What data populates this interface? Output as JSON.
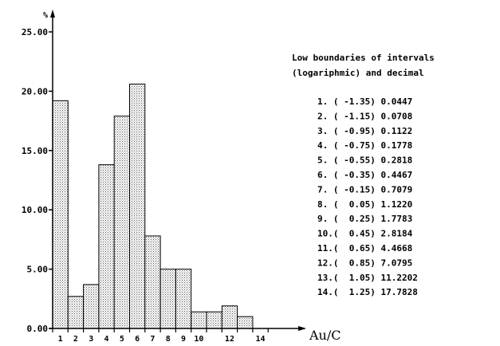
{
  "chart_data": {
    "type": "bar",
    "y_unit": "%",
    "xlabel": "Au/C",
    "ylabel": "",
    "ylim": [
      0,
      25
    ],
    "yticks": [
      "0.00",
      "5.00",
      "10.00",
      "15.00",
      "20.00",
      "25.00"
    ],
    "x_tick_labels": [
      "1",
      "2",
      "3",
      "4",
      "5",
      "6",
      "7",
      "8",
      "9",
      "10",
      "12",
      "14"
    ],
    "categories": [
      "1",
      "2",
      "3",
      "4",
      "5",
      "6",
      "7",
      "8",
      "9",
      "10",
      "11",
      "12",
      "13",
      "14"
    ],
    "values": [
      19.2,
      2.7,
      3.7,
      13.8,
      17.9,
      20.6,
      7.8,
      5.0,
      5.0,
      1.4,
      1.4,
      1.9,
      1.0,
      0.0
    ],
    "bar_fill": "dotted-gray",
    "grid": false,
    "legend": {
      "title_lines": [
        "Low boundaries of intervals",
        "(logariphmic) and decimal"
      ],
      "rows": [
        "1. ( -1.35) 0.0447",
        "2. ( -1.15) 0.0708",
        "3. ( -0.95) 0.1122",
        "4. ( -0.75) 0.1778",
        "5. ( -0.55) 0.2818",
        "6. ( -0.35) 0.4467",
        "7. ( -0.15) 0.7079",
        "8. (  0.05) 1.1220",
        "9. (  0.25) 1.7783",
        "10.(  0.45) 2.8184",
        "11.(  0.65) 4.4668",
        "12.(  0.85) 7.0795",
        "13.(  1.05) 11.2202",
        "14.(  1.25) 17.7828"
      ]
    }
  }
}
